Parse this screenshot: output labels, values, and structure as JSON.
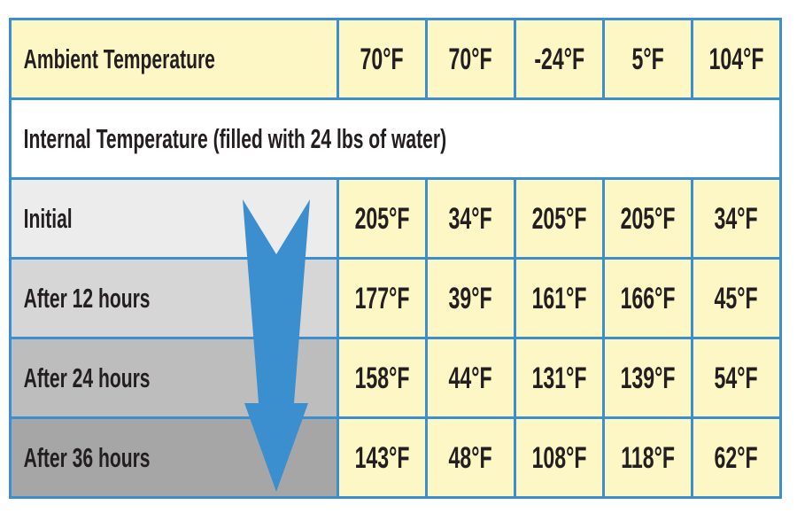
{
  "table": {
    "ambient": {
      "label": "Ambient Temperature",
      "values": [
        "70°F",
        "70°F",
        "-24°F",
        "5°F",
        "104°F"
      ]
    },
    "section_title": "Internal Temperature (filled with 24 lbs of water)",
    "rows": [
      {
        "label": "Initial",
        "values": [
          "205°F",
          "34°F",
          "205°F",
          "205°F",
          "34°F"
        ]
      },
      {
        "label": "After 12 hours",
        "values": [
          "177°F",
          "39°F",
          "161°F",
          "166°F",
          "45°F"
        ]
      },
      {
        "label": "After 24 hours",
        "values": [
          "158°F",
          "44°F",
          "131°F",
          "139°F",
          "54°F"
        ]
      },
      {
        "label": "After 36 hours",
        "values": [
          "143°F",
          "48°F",
          "108°F",
          "118°F",
          "62°F"
        ]
      }
    ]
  },
  "colors": {
    "border": "#3b8fcf",
    "value_cell": "#fdf7c6",
    "arrow": "#3b8fcf",
    "text": "#231f20"
  },
  "icons": {
    "arrow": "down-arrow-icon"
  }
}
